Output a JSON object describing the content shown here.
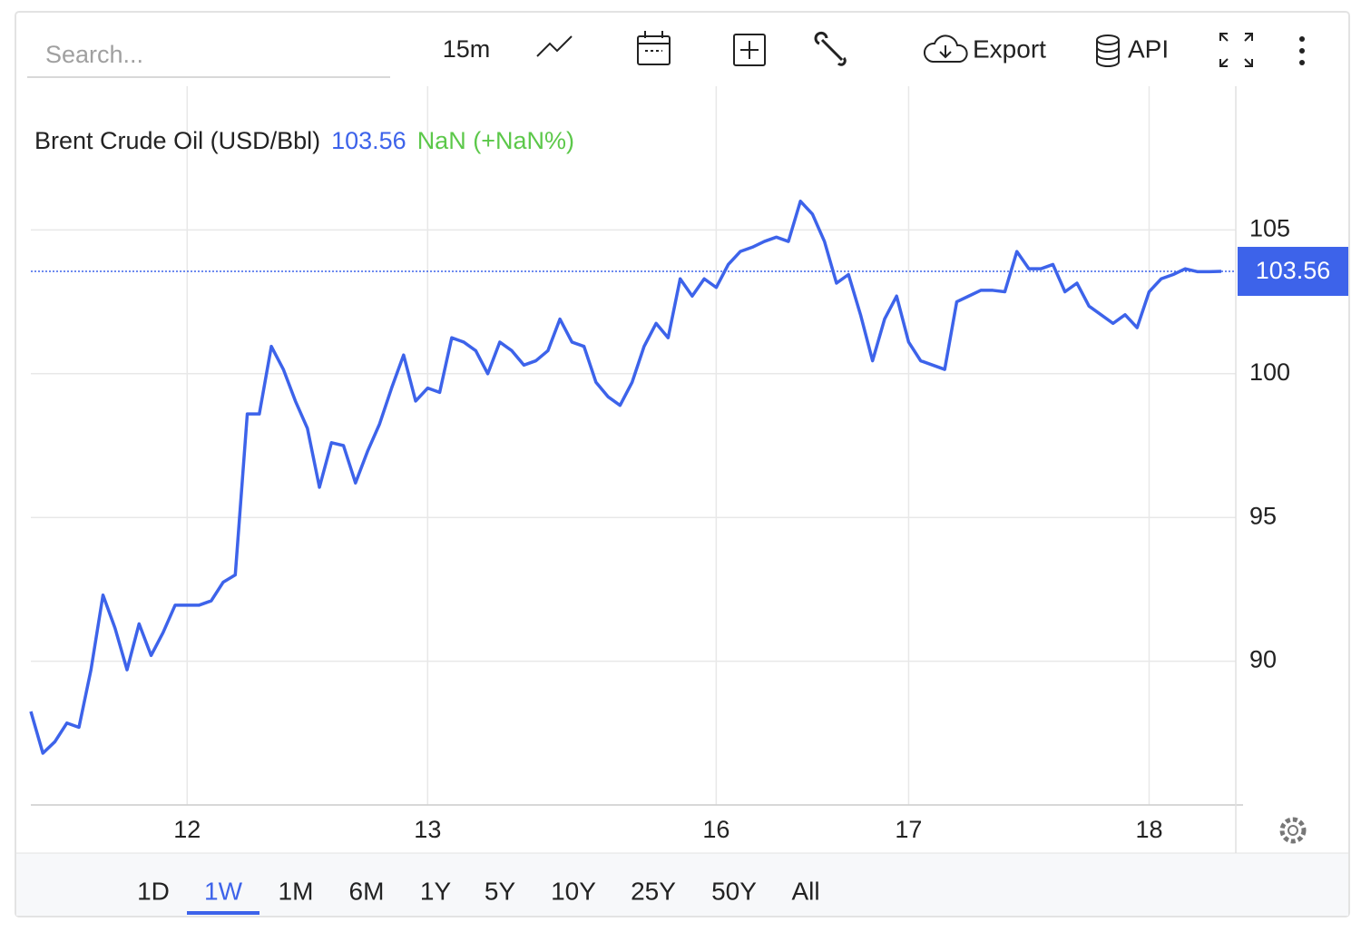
{
  "toolbar": {
    "search_placeholder": "Search...",
    "interval": "15m",
    "export": "Export",
    "api": "API"
  },
  "header": {
    "change": "NaN (+NaN%)"
  },
  "ranges": [
    "1D",
    "1W",
    "1M",
    "6M",
    "1Y",
    "5Y",
    "10Y",
    "25Y",
    "50Y",
    "All"
  ],
  "active_range": 1,
  "chart_data": {
    "type": "line",
    "categories": [
      null,
      null,
      null,
      null,
      null,
      null,
      null,
      null,
      null,
      null,
      null,
      null,
      null,
      "12",
      null,
      null,
      null,
      null,
      null,
      null,
      null,
      null,
      null,
      null,
      null,
      null,
      null,
      null,
      null,
      null,
      null,
      null,
      null,
      "13",
      null,
      null,
      null,
      null,
      null,
      null,
      null,
      null,
      null,
      null,
      null,
      null,
      null,
      null,
      null,
      null,
      null,
      null,
      null,
      null,
      null,
      null,
      null,
      "16",
      null,
      null,
      null,
      null,
      null,
      null,
      null,
      null,
      null,
      null,
      null,
      null,
      null,
      null,
      null,
      "17",
      null,
      null,
      null,
      null,
      null,
      null,
      null,
      null,
      null,
      null,
      null,
      null,
      null,
      null,
      null,
      null,
      null,
      null,
      null,
      "18",
      null,
      null,
      null,
      null,
      null,
      null
    ],
    "series": [
      {
        "name": "Brent Crude Oil (USD/Bbl)",
        "color": "#3d63ea",
        "values": [
          88.25,
          86.8,
          87.2,
          87.85,
          87.7,
          89.7,
          92.3,
          91.15,
          89.7,
          91.3,
          90.2,
          91.0,
          91.95,
          91.95,
          91.95,
          92.1,
          92.75,
          93.0,
          98.6,
          98.6,
          100.95,
          100.15,
          99.05,
          98.1,
          96.05,
          97.6,
          97.5,
          96.2,
          97.3,
          98.25,
          99.5,
          100.65,
          99.05,
          99.5,
          99.35,
          101.25,
          101.1,
          100.8,
          100.0,
          101.1,
          100.8,
          100.3,
          100.45,
          100.8,
          101.9,
          101.1,
          100.95,
          99.7,
          99.2,
          98.9,
          99.7,
          100.95,
          101.75,
          101.25,
          103.3,
          102.7,
          103.3,
          103.0,
          103.8,
          104.25,
          104.4,
          104.6,
          104.75,
          104.6,
          106.0,
          105.55,
          104.6,
          103.15,
          103.45,
          102.05,
          100.45,
          101.9,
          102.7,
          101.1,
          100.45,
          100.3,
          100.15,
          102.5,
          102.7,
          102.9,
          102.9,
          102.85,
          104.25,
          103.65,
          103.65,
          103.8,
          102.85,
          103.15,
          102.35,
          102.05,
          101.75,
          102.05,
          101.6,
          102.85,
          103.3,
          103.45,
          103.65,
          103.55,
          103.55,
          103.56
        ]
      }
    ],
    "last_value": 103.56,
    "ylim": [
      85,
      110
    ],
    "yticks": [
      90,
      95,
      100,
      105
    ],
    "grid": true
  }
}
